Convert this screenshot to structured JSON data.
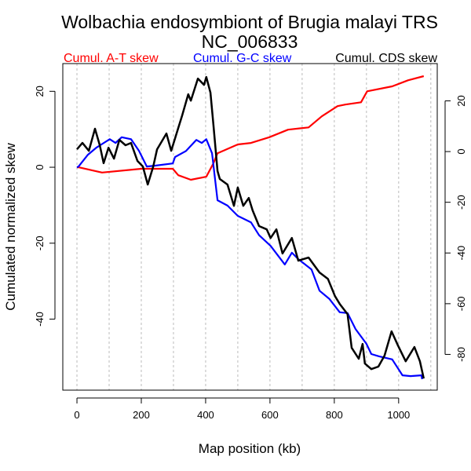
{
  "chart_data": {
    "type": "line",
    "title": "Wolbachia endosymbiont of Brugia malayi TRS",
    "subtitle": "NC_006833",
    "xlabel": "Map position (kb)",
    "ylabel": "Cumulated normalized skew",
    "xlim": [
      -44,
      1120
    ],
    "ylim_left": [
      -58.7,
      27.3
    ],
    "ylim_right": [
      -94.1,
      34.7
    ],
    "x_ticks": [
      "0",
      "200",
      "400",
      "600",
      "800",
      "1000"
    ],
    "x_tick_values": [
      0,
      200,
      400,
      600,
      800,
      1000
    ],
    "left_ticks": [
      "-40",
      "-20",
      "0",
      "20"
    ],
    "left_tick_values": [
      -40,
      -20,
      0,
      20
    ],
    "right_ticks": [
      "-80",
      "-60",
      "-40",
      "-20",
      "0",
      "20"
    ],
    "right_tick_values": [
      -80,
      -60,
      -40,
      -20,
      0,
      20
    ],
    "grid": "vertical dotted every 100 kb",
    "legend_placement": "top",
    "series": [
      {
        "name": "Cumul. A-T skew",
        "color": "#ff0000",
        "axis": "left",
        "x": [
          0,
          5,
          78,
          200,
          298,
          315,
          354,
          402,
          424,
          437,
          500,
          541,
          598,
          656,
          720,
          761,
          810,
          834,
          883,
          902,
          980,
          1029,
          1078
        ],
        "y": [
          0,
          0,
          -1.4,
          -0.4,
          -0.4,
          -2.1,
          -3.3,
          -2.5,
          1.0,
          3.7,
          6.0,
          6.4,
          7.9,
          9.9,
          10.5,
          13.4,
          16.1,
          16.5,
          17.1,
          20.0,
          21.3,
          22.9,
          24.0
        ]
      },
      {
        "name": "Cumul. G-C skew",
        "color": "#0000ff",
        "axis": "left",
        "x": [
          0,
          5,
          34,
          61,
          102,
          120,
          139,
          168,
          193,
          217,
          241,
          298,
          305,
          339,
          371,
          388,
          402,
          420,
          437,
          468,
          500,
          541,
          566,
          602,
          646,
          668,
          688,
          729,
          754,
          785,
          817,
          841,
          866,
          900,
          915,
          939,
          980,
          1012,
          1037,
          1071,
          1073
        ],
        "y": [
          0,
          0.2,
          3.3,
          5.2,
          7.4,
          6.4,
          7.9,
          7.4,
          4.3,
          0.2,
          0.4,
          1.0,
          2.7,
          4.3,
          7.2,
          6.4,
          7.4,
          3.7,
          -8.7,
          -10.1,
          -12.8,
          -14.5,
          -17.9,
          -20.7,
          -25.6,
          -22.5,
          -24.2,
          -26.9,
          -32.5,
          -34.7,
          -38.2,
          -38.4,
          -42.6,
          -46.5,
          -49.2,
          -49.8,
          -50.6,
          -54.8,
          -55.0,
          -54.8,
          -55.8
        ]
      },
      {
        "name": "Cumul. CDS skew",
        "color": "#000000",
        "axis": "right",
        "x": [
          0,
          17,
          37,
          56,
          71,
          83,
          98,
          115,
          132,
          151,
          168,
          188,
          205,
          220,
          237,
          249,
          278,
          293,
          315,
          327,
          346,
          354,
          376,
          395,
          402,
          415,
          424,
          437,
          444,
          468,
          488,
          500,
          517,
          534,
          546,
          566,
          590,
          602,
          620,
          639,
          668,
          688,
          720,
          754,
          780,
          802,
          817,
          841,
          854,
          876,
          888,
          895,
          915,
          937,
          956,
          978,
          998,
          1022,
          1049,
          1066,
          1078
        ],
        "y": [
          0.9,
          3.4,
          0.3,
          9.0,
          2.5,
          -4.6,
          1.5,
          -2.8,
          4.6,
          2.5,
          3.4,
          -3.7,
          -5.9,
          -13.0,
          -5.9,
          0.9,
          7.1,
          0.3,
          9.3,
          14.2,
          22.6,
          20.1,
          28.8,
          26.3,
          29.4,
          23.2,
          10.8,
          -7.7,
          -10.8,
          -13.0,
          -21.4,
          -14.2,
          -21.4,
          -18.3,
          -23.2,
          -29.4,
          -30.7,
          -34.1,
          -30.7,
          -40.2,
          -34.1,
          -43.0,
          -41.8,
          -47.7,
          -50.2,
          -57.0,
          -60.1,
          -64.1,
          -77.4,
          -81.7,
          -75.9,
          -83.6,
          -85.8,
          -84.8,
          -80.5,
          -70.9,
          -76.5,
          -82.7,
          -77.1,
          -82.7,
          -89.5
        ]
      }
    ]
  }
}
